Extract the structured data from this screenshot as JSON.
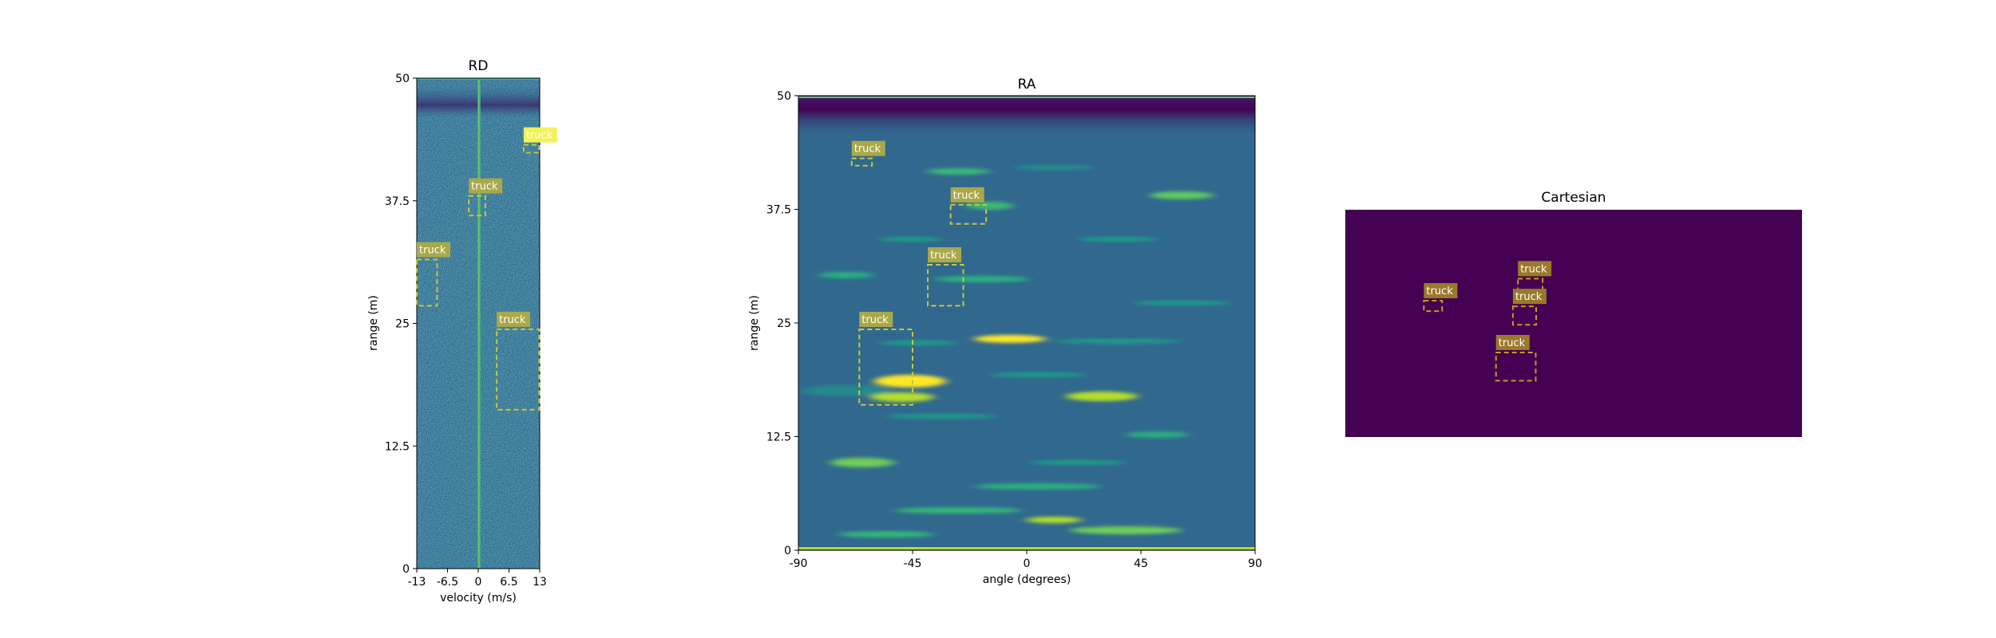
{
  "chart_data": [
    {
      "type": "heatmap",
      "title": "RD",
      "xlabel": "velocity (m/s)",
      "ylabel": "range (m)",
      "xlim": [
        -13,
        13
      ],
      "ylim": [
        0,
        50
      ],
      "xticks": [
        "-13",
        "-6.5",
        "0",
        "6.5",
        "13"
      ],
      "yticks": [
        "0",
        "12.5",
        "25",
        "37.5",
        "50"
      ],
      "colormap": "viridis",
      "boxes": [
        {
          "label": "truck",
          "x0": 3.9,
          "x1": 12.9,
          "y0": 16.2,
          "y1": 24.4
        },
        {
          "label": "truck",
          "x0": -13,
          "x1": -8.7,
          "y0": 26.8,
          "y1": 31.5
        },
        {
          "label": "truck",
          "x0": -2.0,
          "x1": 1.5,
          "y0": 36.0,
          "y1": 38.0
        },
        {
          "label": "truck",
          "x0": 9.6,
          "x1": 12.9,
          "y0": 42.4,
          "y1": 43.2
        }
      ]
    },
    {
      "type": "heatmap",
      "title": "RA",
      "xlabel": "angle (degrees)",
      "ylabel": "range (m)",
      "xlim": [
        -90,
        90
      ],
      "ylim": [
        0,
        50
      ],
      "xticks": [
        "-90",
        "-45",
        "0",
        "45",
        "90"
      ],
      "yticks": [
        "0",
        "12.5",
        "25",
        "37.5",
        "50"
      ],
      "colormap": "viridis",
      "boxes": [
        {
          "label": "truck",
          "x0": -66,
          "x1": -45,
          "y0": 16.0,
          "y1": 24.3
        },
        {
          "label": "truck",
          "x0": -39,
          "x1": -25,
          "y0": 26.9,
          "y1": 31.4
        },
        {
          "label": "truck",
          "x0": -30,
          "x1": -16,
          "y0": 35.9,
          "y1": 38.0
        },
        {
          "label": "truck",
          "x0": -69,
          "x1": -61,
          "y0": 42.3,
          "y1": 43.1
        }
      ]
    },
    {
      "type": "heatmap",
      "title": "Cartesian",
      "colormap": "viridis",
      "boxes": [
        {
          "label": "truck",
          "fx0": 0.172,
          "fx1": 0.212,
          "fy0": 0.4,
          "fy1": 0.446
        },
        {
          "label": "truck",
          "fx0": 0.378,
          "fx1": 0.432,
          "fy0": 0.303,
          "fy1": 0.365
        },
        {
          "label": "truck",
          "fx0": 0.367,
          "fx1": 0.418,
          "fy0": 0.425,
          "fy1": 0.506
        },
        {
          "label": "truck",
          "fx0": 0.33,
          "fx1": 0.417,
          "fy0": 0.628,
          "fy1": 0.752
        }
      ]
    }
  ],
  "colors": {
    "box": "#c8c83a",
    "label_bg": "#a9a94a",
    "label_bg_highlight": "#f2f25a",
    "cartesian_bg": "#440154",
    "cartesian_box": "#c89a1e",
    "cartesian_label_bg": "#9a7a2a"
  }
}
